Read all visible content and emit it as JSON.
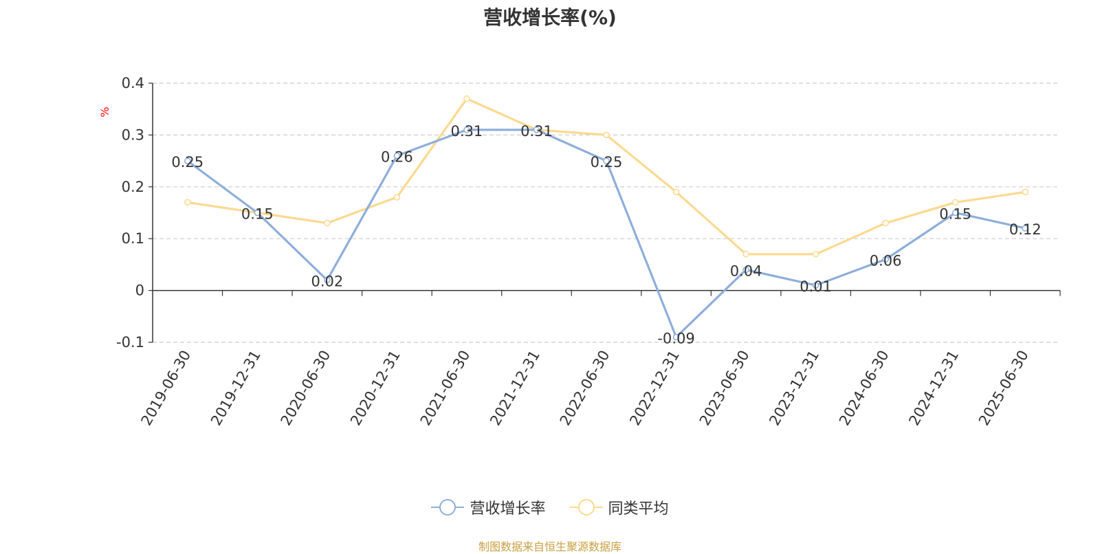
{
  "title": "营收增长率(%)",
  "y_unit": "%",
  "source": "制图数据来自恒生聚源数据库",
  "colors": {
    "series1": "#8eaedb",
    "series2": "#fbd98f",
    "axis": "#333333",
    "grid": "#cccccc",
    "unit": "#ff0000",
    "source": "#c8a040"
  },
  "chart_data": {
    "type": "line",
    "title": "营收增长率(%)",
    "ylabel": "%",
    "ylim": [
      -0.1,
      0.4
    ],
    "yticks": [
      -0.1,
      0,
      0.1,
      0.2,
      0.3,
      0.4
    ],
    "grid": true,
    "legend_position": "bottom",
    "x": [
      "2019-06-30",
      "2019-12-31",
      "2020-06-30",
      "2020-12-31",
      "2021-06-30",
      "2021-12-31",
      "2022-06-30",
      "2022-12-31",
      "2023-06-30",
      "2023-12-31",
      "2024-06-30",
      "2024-12-31",
      "2025-06-30"
    ],
    "series": [
      {
        "name": "营收增长率",
        "values": [
          0.25,
          0.15,
          0.02,
          0.26,
          0.31,
          0.31,
          0.25,
          -0.09,
          0.04,
          0.01,
          0.06,
          0.15,
          0.12
        ],
        "labels": [
          "0.25",
          "0.15",
          "0.02",
          "0.26",
          "0.31",
          "0.31",
          "0.25",
          "-0.09",
          "0.04",
          "0.01",
          "0.06",
          "0.15",
          "0.12"
        ]
      },
      {
        "name": "同类平均",
        "values": [
          0.17,
          0.15,
          0.13,
          0.18,
          0.37,
          0.31,
          0.3,
          0.19,
          0.07,
          0.07,
          0.13,
          0.17,
          0.19
        ]
      }
    ]
  }
}
